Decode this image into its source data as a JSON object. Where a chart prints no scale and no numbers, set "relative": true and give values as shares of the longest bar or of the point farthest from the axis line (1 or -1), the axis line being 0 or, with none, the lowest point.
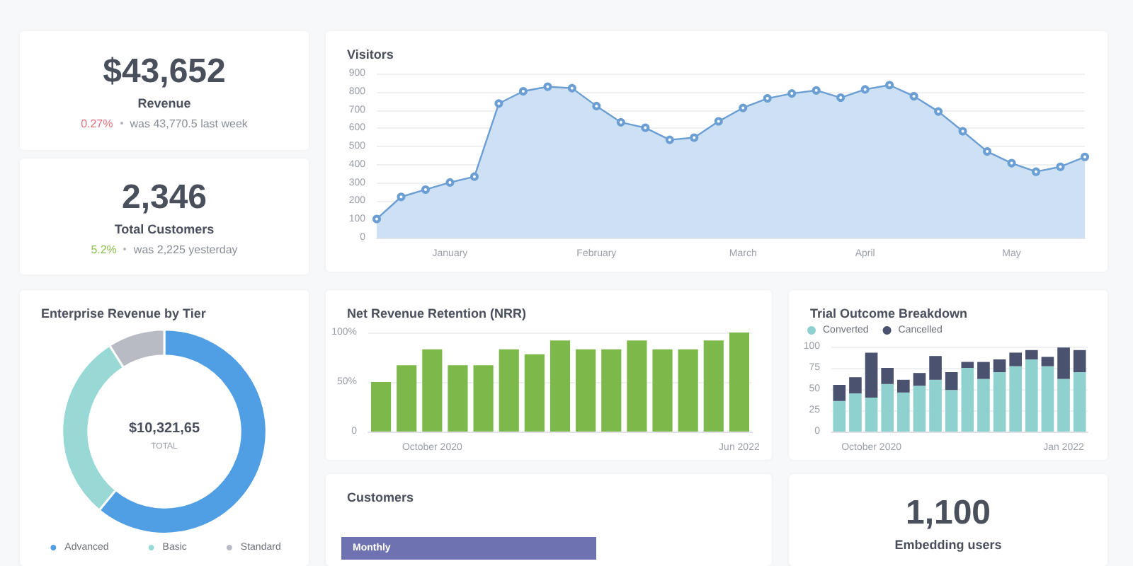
{
  "chart_data": [
    {
      "type": "other",
      "title": "$43,652",
      "subtitle": "Revenue",
      "annotations": [
        "0.27%",
        "was 43,770.5 last week"
      ],
      "colors": [
        "#e8707c",
        "#8a8f99"
      ]
    },
    {
      "type": "other",
      "title": "2,346",
      "subtitle": "Total Customers",
      "annotations": [
        "5.2%",
        "was 2,225 yesterday"
      ],
      "colors": [
        "#8cc152",
        "#8a8f99"
      ]
    },
    {
      "type": "area",
      "title": "Visitors",
      "categories": [
        null,
        null,
        null,
        "January",
        null,
        null,
        null,
        null,
        null,
        "February",
        null,
        null,
        null,
        null,
        null,
        "March",
        null,
        null,
        null,
        null,
        "April",
        null,
        null,
        null,
        null,
        null,
        "May",
        null,
        null,
        null
      ],
      "series": [
        {
          "color": "#6b9fd4",
          "values": [
            103,
            224,
            264,
            303,
            335,
            736,
            803,
            828,
            820,
            722,
            633,
            603,
            537,
            549,
            638,
            712,
            764,
            791,
            808,
            768,
            813,
            837,
            776,
            692,
            584,
            473,
            409,
            362,
            389,
            443
          ]
        }
      ],
      "ylim": [
        0,
        900
      ],
      "yticks": [
        0,
        100,
        200,
        300,
        400,
        500,
        600,
        700,
        800,
        900
      ],
      "grid": "y",
      "marker": "circle"
    },
    {
      "type": "donut",
      "title": "Enterprise Revenue by Tier",
      "categories": [
        "Advanced",
        "Basic",
        "Standard"
      ],
      "values": [
        61,
        30,
        9
      ],
      "colors": [
        "#509ee3",
        "#98d9d5",
        "#b8bbc3"
      ],
      "legend": "bottom",
      "annotations": [
        "$10,321,65",
        "TOTAL"
      ]
    },
    {
      "type": "bar",
      "title": "Net Revenue Retention (NRR)",
      "categories": [
        null,
        null,
        "October 2020",
        null,
        null,
        null,
        null,
        null,
        null,
        null,
        null,
        null,
        null,
        null,
        "Jun 2022"
      ],
      "series": [
        {
          "color": "#7cb94a",
          "values": [
            50,
            67,
            83,
            67,
            67,
            83,
            78,
            92,
            83,
            83,
            92,
            83,
            83,
            92,
            100
          ]
        }
      ],
      "ylim": [
        0,
        100
      ],
      "yticks": [
        {
          "value": 0,
          "label": "0"
        },
        {
          "value": 50,
          "label": "50%"
        },
        {
          "value": 100,
          "label": "100%"
        }
      ],
      "grid": "y"
    },
    {
      "type": "bar",
      "title": "Trial Outcome Breakdown",
      "categories": [
        null,
        null,
        "October 2020",
        null,
        null,
        null,
        null,
        null,
        null,
        null,
        null,
        null,
        null,
        null,
        "Jan 2022",
        null
      ],
      "stacked": true,
      "series": [
        {
          "name": "Converted",
          "color": "#8ed1cf",
          "values": [
            36,
            45,
            40,
            56,
            46,
            54,
            61,
            49,
            75,
            62,
            70,
            77,
            85,
            77,
            62,
            70
          ]
        },
        {
          "name": "Cancelled",
          "color": "#4a5270",
          "values": [
            19,
            19,
            53,
            19,
            15,
            15,
            28,
            21,
            7,
            20,
            15,
            16,
            11,
            11,
            37,
            26
          ]
        }
      ],
      "ylim": [
        0,
        100
      ],
      "yticks": [
        0,
        25,
        50,
        75,
        100
      ],
      "grid": "y",
      "legend": "top left"
    },
    {
      "type": "bar",
      "title": "Customers",
      "orientation": "horizontal",
      "relative": true,
      "categories": [
        "Monthly"
      ],
      "values": [
        1
      ],
      "color": "#6e72b0"
    },
    {
      "type": "other",
      "title": "1,100",
      "subtitle": "Embedding users"
    }
  ]
}
